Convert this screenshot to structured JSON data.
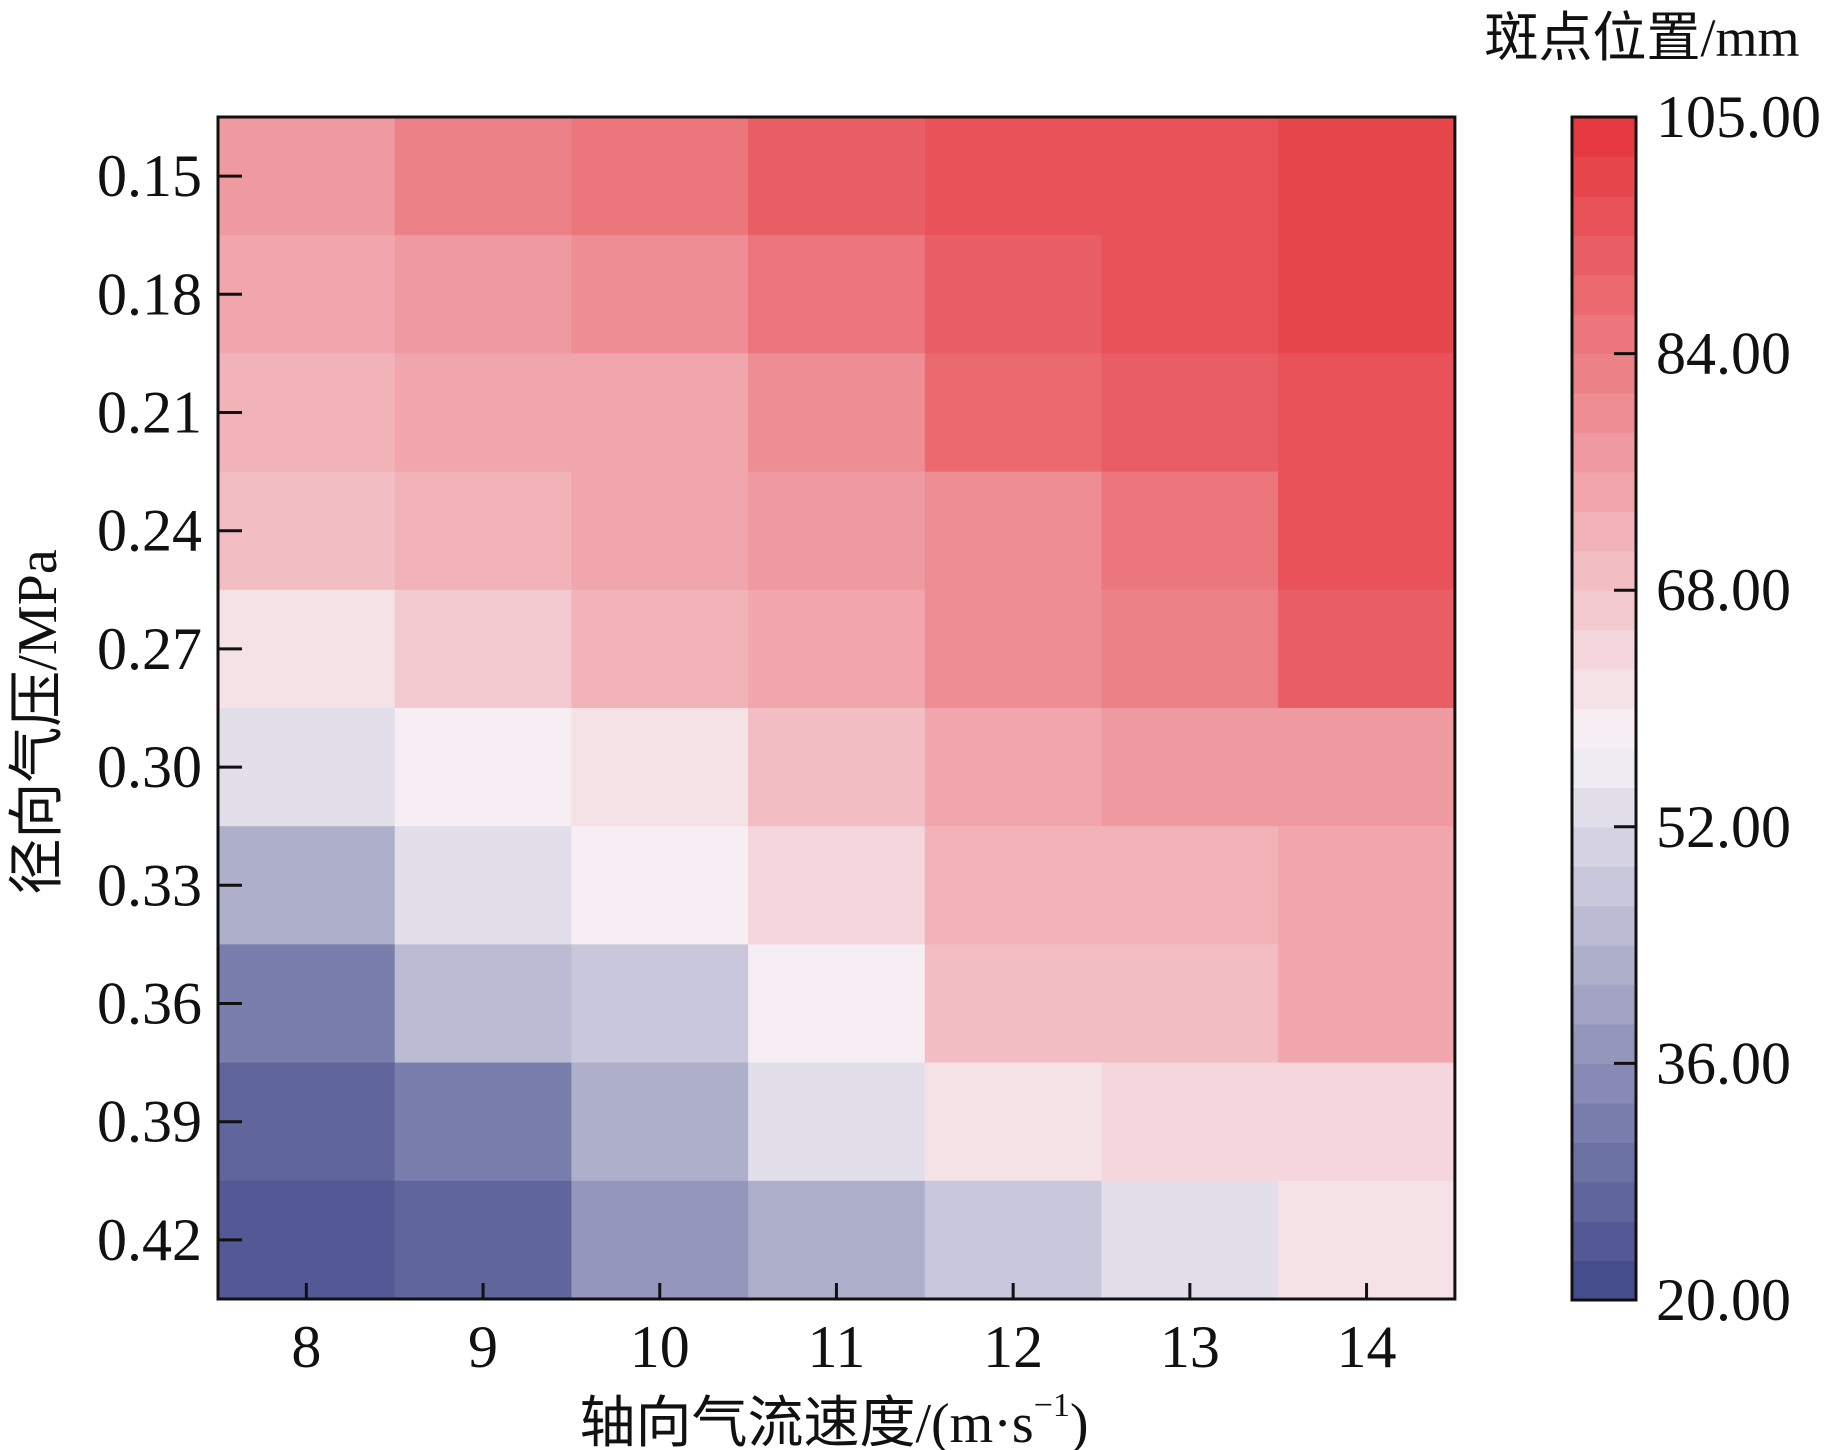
{
  "chart_data": {
    "type": "heatmap",
    "title": "",
    "xlabel": "轴向气流速度/(m·s",
    "xlabel_sup": "−1",
    "xlabel_end": ")",
    "ylabel": "径向气压/MPa",
    "x_categories": [
      "8",
      "9",
      "10",
      "11",
      "12",
      "13",
      "14"
    ],
    "y_categories": [
      "0.15",
      "0.18",
      "0.21",
      "0.24",
      "0.27",
      "0.30",
      "0.33",
      "0.36",
      "0.39",
      "0.42"
    ],
    "values": [
      [
        81,
        87,
        90,
        94,
        97,
        98,
        101
      ],
      [
        79,
        82,
        85,
        88,
        95,
        99,
        102
      ],
      [
        74,
        77,
        79,
        85,
        93,
        96,
        98
      ],
      [
        72,
        74,
        77,
        82,
        85,
        89,
        97
      ],
      [
        64,
        70,
        74,
        77,
        84,
        87,
        95
      ],
      [
        55,
        61,
        64,
        72,
        78,
        80,
        80
      ],
      [
        43,
        55,
        61,
        66,
        75,
        75,
        79
      ],
      [
        34,
        48,
        51,
        61,
        71,
        72,
        77
      ],
      [
        27,
        34,
        45,
        56,
        64,
        66,
        66
      ],
      [
        24,
        28,
        38,
        45,
        51,
        56,
        64
      ]
    ],
    "colorbar": {
      "title": "斑点位置/mm",
      "min": 20,
      "max": 105,
      "tick_labels": [
        "20.00",
        "36.00",
        "52.00",
        "68.00",
        "84.00",
        "105.00"
      ],
      "levels": 30,
      "low_color": "#3f4788",
      "mid_color": "#f7f3f8",
      "high_color": "#e5343a",
      "mid_value": 60
    },
    "legend": "right",
    "grid": false
  }
}
